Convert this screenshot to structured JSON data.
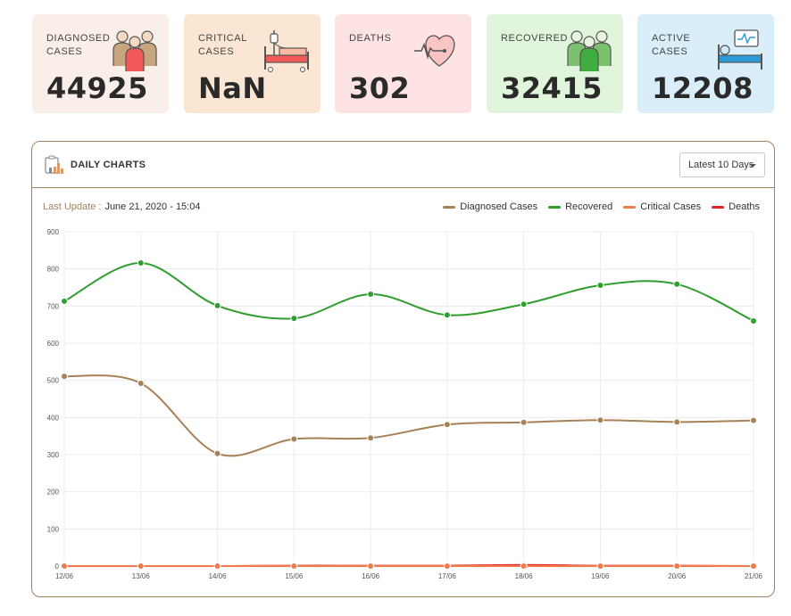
{
  "cards": [
    {
      "label": "Diagnosed Cases",
      "value": "44925",
      "bg": "#f9efe8",
      "icon": "group-people-icon"
    },
    {
      "label": "Critical Cases",
      "value": "NaN",
      "bg": "#fae6d3",
      "icon": "hospital-bed-icon"
    },
    {
      "label": "Deaths",
      "value": "302",
      "bg": "#fde3e3",
      "icon": "heart-pulse-icon"
    },
    {
      "label": "Recovered",
      "value": "32415",
      "bg": "#e1f4dc",
      "icon": "recovered-people-icon"
    },
    {
      "label": "Active Cases",
      "value": "12208",
      "bg": "#daeefa",
      "icon": "patient-monitor-icon"
    }
  ],
  "panel": {
    "title": "DAILY CHARTS",
    "icon": "bar-chart-icon",
    "dropdown": "Latest 10 Days",
    "update_label": "Last Update :",
    "update_value": "June 21, 2020 - 15:04"
  },
  "chart_data": {
    "type": "line",
    "x": [
      "12/06",
      "13/06",
      "14/06",
      "15/06",
      "16/06",
      "17/06",
      "18/06",
      "19/06",
      "20/06",
      "21/06"
    ],
    "ylim": [
      0,
      900
    ],
    "yticks": [
      0,
      100,
      200,
      300,
      400,
      500,
      600,
      700,
      800,
      900
    ],
    "grid": true,
    "legend_position": "top-right",
    "series": [
      {
        "name": "Diagnosed Cases",
        "color": "#a88156",
        "values": [
          511,
          492,
          303,
          342,
          345,
          381,
          387,
          393,
          388,
          392
        ]
      },
      {
        "name": "Recovered",
        "color": "#2e9e2e",
        "values": [
          713,
          816,
          701,
          667,
          732,
          676,
          705,
          756,
          759,
          660
        ]
      },
      {
        "name": "Critical Cases",
        "color": "#f07a4a",
        "values": [
          0,
          0,
          0,
          0,
          0,
          0,
          0,
          0,
          0,
          0
        ]
      },
      {
        "name": "Deaths",
        "color": "#e02424",
        "values": [
          0,
          0,
          0,
          1,
          1,
          1,
          3,
          1,
          1,
          0
        ]
      }
    ]
  }
}
